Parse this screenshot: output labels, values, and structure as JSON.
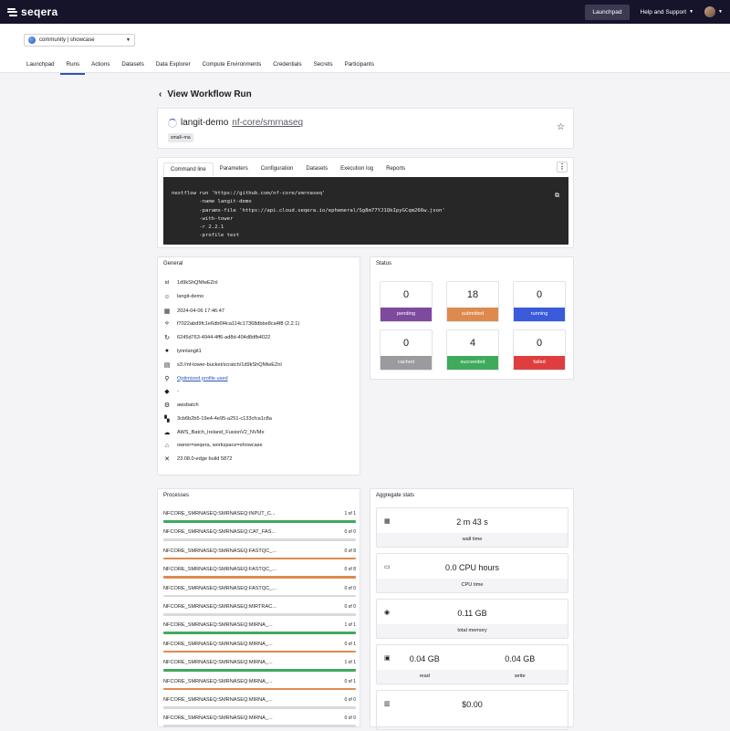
{
  "topbar": {
    "logo": "seqera",
    "launchpad": "Launchpad",
    "help": "Help and Support"
  },
  "workspace": {
    "label": "community | showcase"
  },
  "nav": [
    "Launchpad",
    "Runs",
    "Actions",
    "Datasets",
    "Data Explorer",
    "Compute Environments",
    "Credentials",
    "Secrets",
    "Participants"
  ],
  "page": {
    "title": "View Workflow Run"
  },
  "run": {
    "name": "langit-demo",
    "pipeline": "nf-core/smrnaseq",
    "tag": "small–rna"
  },
  "detail_tabs": [
    "Command line",
    "Parameters",
    "Configuration",
    "Datasets",
    "Execution log",
    "Reports"
  ],
  "command": {
    "lines": [
      "nextflow run 'https://github.com/nf-core/smrnaseq'",
      "         -name langit-demo",
      "         -params-file 'https://api.cloud.seqera.io/ephemeral/Sg8m77YJ1QkIpyGCqm266w.json'",
      "         -with-tower",
      "         -r 2.2.1",
      "         -profile test"
    ]
  },
  "general": {
    "title": "General",
    "rows": [
      {
        "icon": "id",
        "text": "1d9kShQNfwEZnl"
      },
      {
        "icon": "☺",
        "text": "langit-demo"
      },
      {
        "icon": "▦",
        "text": "2024-04-06 17:46:47"
      },
      {
        "icon": "⟡",
        "text": "f7022abd9fc1e6db6f4ca114c17368dbbe8ca4f8 (2.2.1)"
      },
      {
        "icon": "↻",
        "text": "6245d763-4944-4ff6-ad8d-404d8dfb4022"
      },
      {
        "icon": "●",
        "text": "lynnlangit1"
      },
      {
        "icon": "▤",
        "text": "s3://nf-tower-bucket/scratch/1d9kShQNfwEZnl"
      },
      {
        "icon": "⚲",
        "text": "Optimized profile used",
        "link": true
      },
      {
        "icon": "◆",
        "text": "-"
      },
      {
        "icon": "⚙",
        "text": "awsbatch"
      },
      {
        "icon": "▚",
        "text": "3cb6b2b5-19e4-4e95-a251-c133cfca1c8a"
      },
      {
        "icon": "☁",
        "text": "AWS_Batch_Ireland_FusionV2_NVMe"
      },
      {
        "icon": "⌂",
        "text": "owner=seqera, workspace=showcase"
      },
      {
        "icon": "✕",
        "text": "23.08.0-edge build 5872"
      }
    ]
  },
  "status": {
    "title": "Status",
    "items": [
      {
        "value": "0",
        "label": "pending",
        "color": "#7d4a9e"
      },
      {
        "value": "18",
        "label": "submitted",
        "color": "#de8a4f"
      },
      {
        "value": "0",
        "label": "running",
        "color": "#3b5bdb"
      },
      {
        "value": "0",
        "label": "cached",
        "color": "#9a9a9f"
      },
      {
        "value": "4",
        "label": "succeeded",
        "color": "#3fa95c"
      },
      {
        "value": "0",
        "label": "failed",
        "color": "#e03e3e"
      }
    ]
  },
  "processes": {
    "title": "Processes",
    "items": [
      {
        "name": "NFCORE_SMRNASEQ:SMRNASEQ:INPUT_C...",
        "count": "1 of 1",
        "progress": 1.0,
        "color": "#3fa95c"
      },
      {
        "name": "NFCORE_SMRNASEQ:SMRNASEQ:CAT_FAS...",
        "count": "0 of 0",
        "progress": 0,
        "color": "#de8a4f"
      },
      {
        "name": "NFCORE_SMRNASEQ:SMRNASEQ:FASTQC_...",
        "count": "0 of 8",
        "progress": 1.0,
        "color": "#de8a4f"
      },
      {
        "name": "NFCORE_SMRNASEQ:SMRNASEQ:FASTQC_...",
        "count": "0 of 8",
        "progress": 1.0,
        "color": "#de8a4f"
      },
      {
        "name": "NFCORE_SMRNASEQ:SMRNASEQ:FASTQC_...",
        "count": "0 of 0",
        "progress": 0,
        "color": "#de8a4f"
      },
      {
        "name": "NFCORE_SMRNASEQ:SMRNASEQ:MIRTRAC...",
        "count": "0 of 0",
        "progress": 0,
        "color": "#de8a4f"
      },
      {
        "name": "NFCORE_SMRNASEQ:SMRNASEQ:MIRNA_...",
        "count": "1 of 1",
        "progress": 1.0,
        "color": "#3fa95c"
      },
      {
        "name": "NFCORE_SMRNASEQ:SMRNASEQ:MIRNA_...",
        "count": "0 of 1",
        "progress": 1.0,
        "color": "#de8a4f"
      },
      {
        "name": "NFCORE_SMRNASEQ:SMRNASEQ:MIRNA_...",
        "count": "1 of 1",
        "progress": 1.0,
        "color": "#3fa95c"
      },
      {
        "name": "NFCORE_SMRNASEQ:SMRNASEQ:MIRNA_...",
        "count": "0 of 1",
        "progress": 1.0,
        "color": "#de8a4f"
      },
      {
        "name": "NFCORE_SMRNASEQ:SMRNASEQ:MIRNA_...",
        "count": "0 of 0",
        "progress": 0,
        "color": "#de8a4f"
      },
      {
        "name": "NFCORE_SMRNASEQ:SMRNASEQ:MIRNA_...",
        "count": "0 of 0",
        "progress": 0,
        "color": "#de8a4f"
      }
    ]
  },
  "aggregate": {
    "title": "Aggregate stats",
    "wall": {
      "value": "2 m 43 s",
      "label": "wall time",
      "icon": "▦"
    },
    "cpu": {
      "value": "0.0 CPU hours",
      "label": "CPU time",
      "icon": "▭"
    },
    "memory": {
      "value": "0.11 GB",
      "label": "total memory",
      "icon": "◉"
    },
    "io": {
      "read_value": "0.04 GB",
      "write_value": "0.04 GB",
      "read_label": "read",
      "write_label": "write",
      "icon": "▣"
    },
    "cost": {
      "value": "$0.00",
      "icon": "▥"
    }
  }
}
